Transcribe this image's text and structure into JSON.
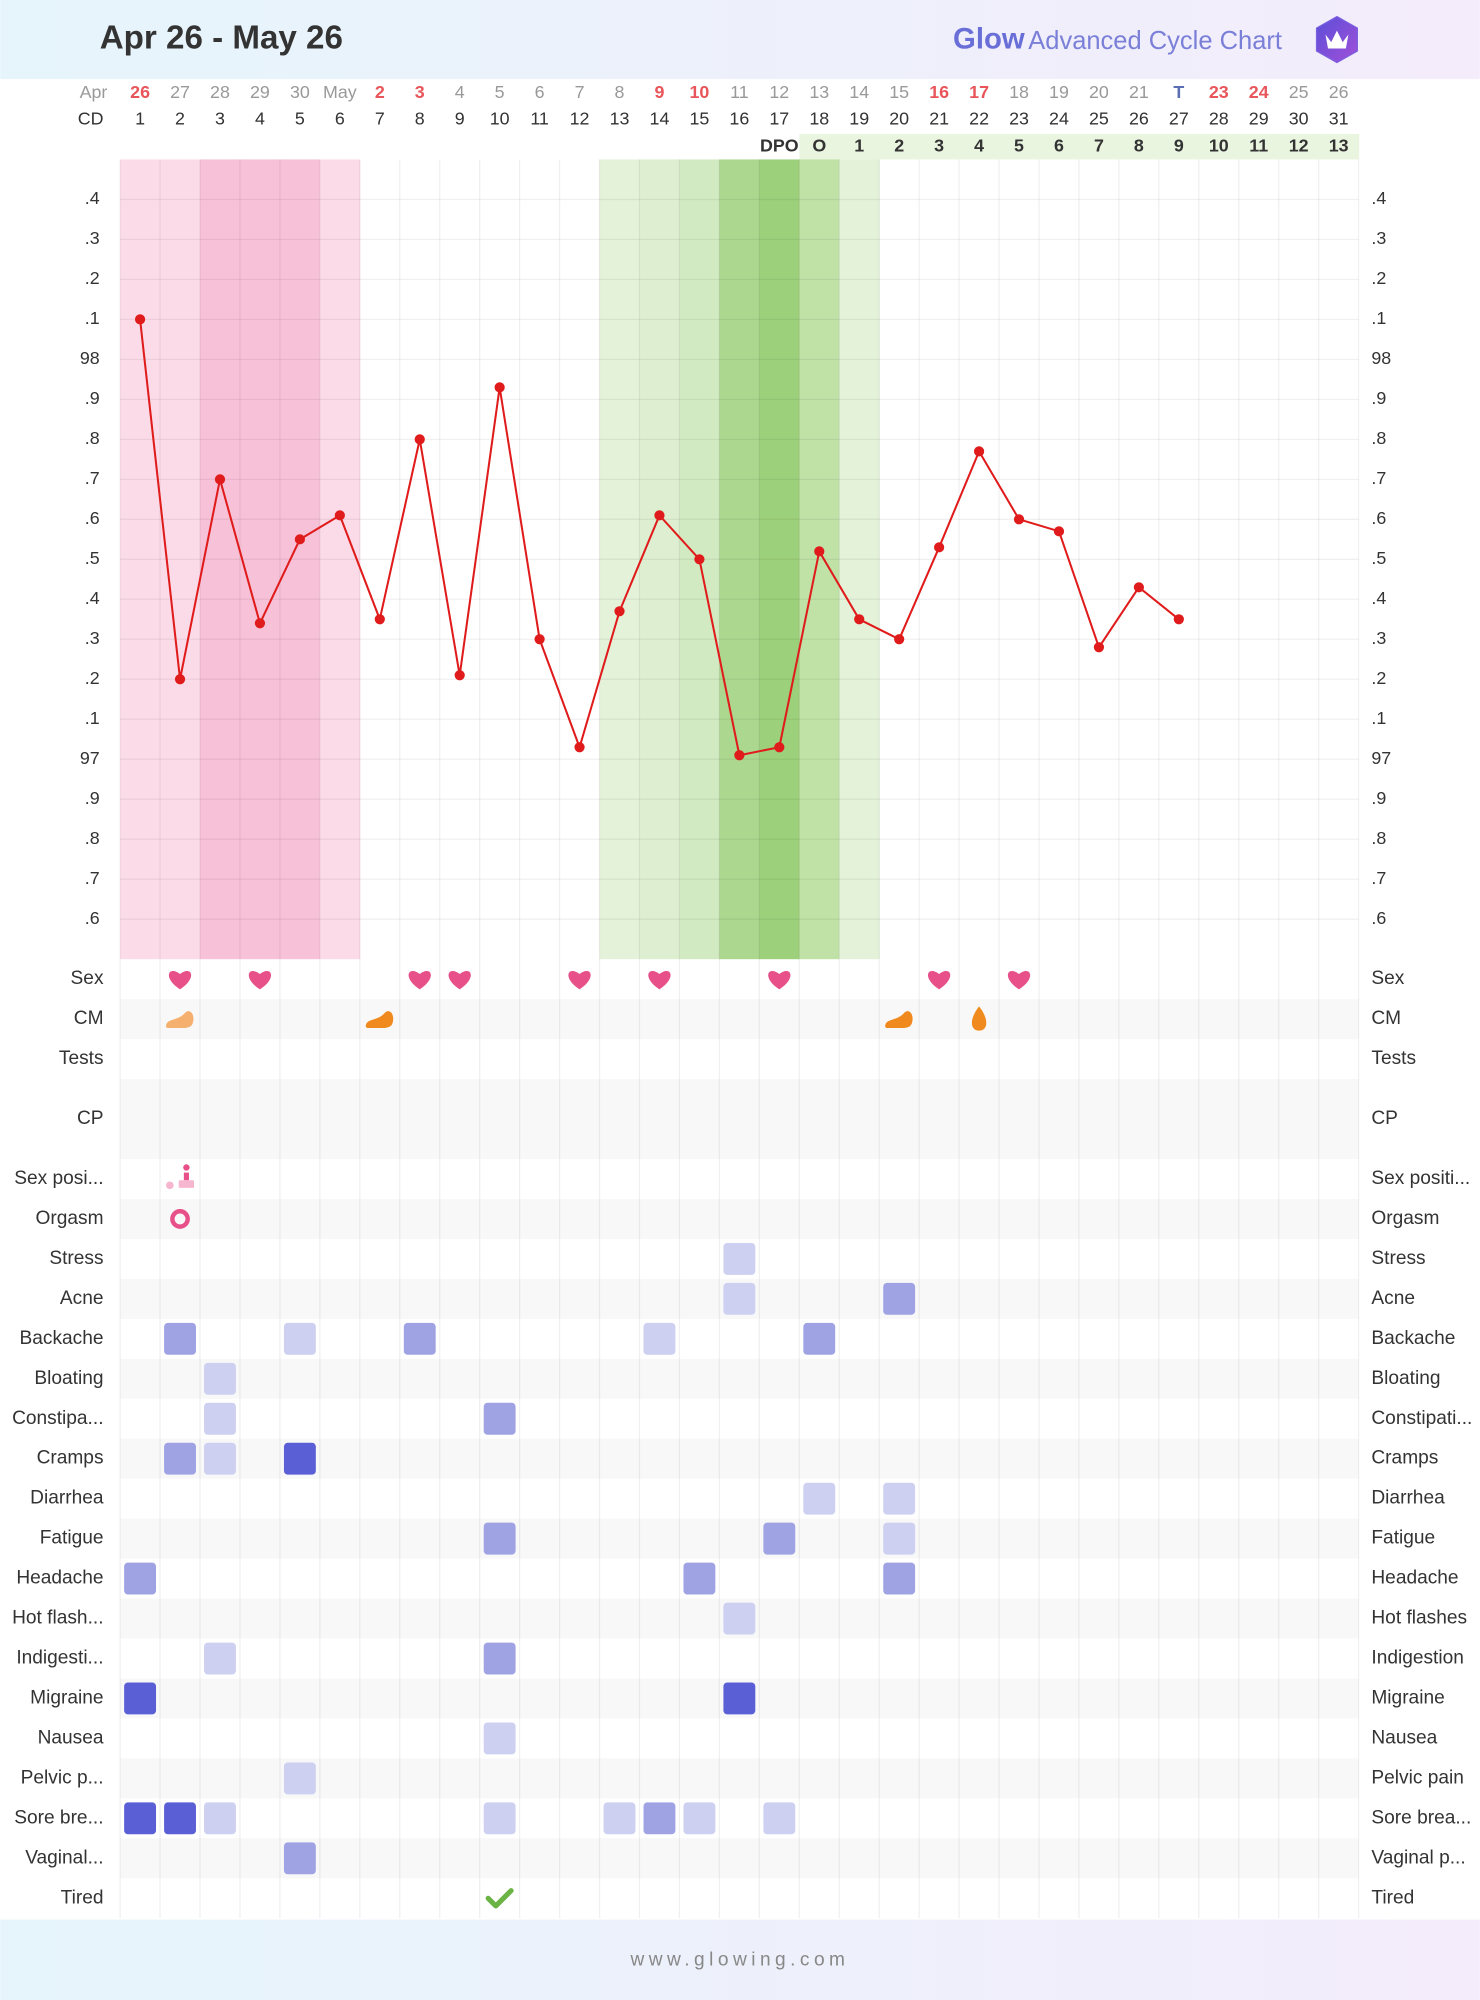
{
  "header": {
    "title": "Apr 26 - May 26",
    "brand_logo": "Glow",
    "brand": "Advanced Cycle Chart"
  },
  "footer": "www.glowing.com",
  "chart_data": {
    "type": "line",
    "category_label": "Apr",
    "categories": [
      "26",
      "27",
      "28",
      "29",
      "30",
      "May",
      "2",
      "3",
      "4",
      "5",
      "6",
      "7",
      "8",
      "9",
      "10",
      "11",
      "12",
      "13",
      "14",
      "15",
      "16",
      "17",
      "18",
      "19",
      "20",
      "21",
      "T",
      "23",
      "24",
      "25",
      "26"
    ],
    "category_colors": [
      "#e8555a",
      null,
      null,
      null,
      null,
      null,
      "#e8555a",
      "#e8555a",
      null,
      null,
      null,
      null,
      null,
      "#e8555a",
      "#e8555a",
      null,
      null,
      null,
      null,
      null,
      "#e8555a",
      "#e8555a",
      null,
      null,
      null,
      null,
      "#5b6fb3",
      "#e8555a",
      "#e8555a",
      null,
      null
    ],
    "values": [
      98.1,
      97.2,
      97.7,
      97.34,
      97.55,
      97.61,
      97.35,
      97.8,
      97.21,
      97.93,
      97.3,
      97.03,
      97.37,
      97.61,
      97.5,
      97.01,
      97.03,
      97.52,
      97.35,
      97.3,
      97.53,
      97.77,
      97.6,
      97.57,
      97.28,
      97.43,
      97.35,
      null,
      null,
      null,
      null
    ],
    "color": "#e01b1b",
    "column_colors": [
      "#fbdbe8",
      "#fbdbe8",
      "#f7c1d7",
      "#f7c1d7",
      "#f7c1d7",
      "#fbdbe8",
      null,
      null,
      null,
      null,
      null,
      null,
      "#e4f2da",
      "#ddefd0",
      "#d2eac2",
      "#acd78f",
      "#9dd07b",
      "#c0e2a7",
      "#e4f2da",
      null,
      null,
      null,
      null,
      null,
      null,
      null,
      null,
      null,
      null,
      null,
      null
    ],
    "ylim": [
      96.5,
      98.5
    ],
    "yticks": [
      {
        "value": 98.4,
        "label": ".4"
      },
      {
        "value": 98.3,
        "label": ".3"
      },
      {
        "value": 98.2,
        "label": ".2"
      },
      {
        "value": 98.1,
        "label": ".1"
      },
      98,
      {
        "value": 97.9,
        "label": ".9"
      },
      {
        "value": 97.8,
        "label": ".8"
      },
      {
        "value": 97.7,
        "label": ".7"
      },
      {
        "value": 97.6,
        "label": ".6"
      },
      {
        "value": 97.5,
        "label": ".5"
      },
      {
        "value": 97.4,
        "label": ".4"
      },
      {
        "value": 97.3,
        "label": ".3"
      },
      {
        "value": 97.2,
        "label": ".2"
      },
      {
        "value": 97.1,
        "label": ".1"
      },
      97,
      {
        "value": 96.9,
        "label": ".9"
      },
      {
        "value": 96.8,
        "label": ".8"
      },
      {
        "value": 96.7,
        "label": ".7"
      },
      {
        "value": 96.6,
        "label": ".6"
      }
    ],
    "grid": true
  },
  "cycle_days": {
    "label": "CD",
    "values": [
      1,
      2,
      3,
      4,
      5,
      6,
      7,
      8,
      9,
      10,
      11,
      12,
      13,
      14,
      15,
      16,
      17,
      18,
      19,
      20,
      21,
      22,
      23,
      24,
      25,
      26,
      27,
      28,
      29,
      30,
      31
    ]
  },
  "dpo": {
    "values": [
      null,
      null,
      null,
      null,
      null,
      null,
      null,
      null,
      null,
      null,
      null,
      null,
      null,
      null,
      null,
      null,
      "DPO",
      "O",
      1,
      2,
      3,
      4,
      5,
      6,
      7,
      8,
      9,
      10,
      11,
      12,
      13
    ],
    "color": "#eaf5e0"
  },
  "level_colors": [
    "#cdd0f0",
    "#9fa3e3",
    "#5b5fd6"
  ],
  "rows": [
    {
      "label": "Sex",
      "label_right": "Sex",
      "days": [
        2,
        4,
        8,
        9,
        12,
        14,
        17,
        21,
        23
      ]
    },
    {
      "label": "CM",
      "label_right": "CM",
      "days": [
        2,
        7,
        20,
        22
      ]
    },
    {
      "label": "Tests",
      "label_right": "Tests"
    },
    {
      "label": "CP",
      "label_right": "CP"
    },
    {
      "label": "Sex posi...",
      "label_right": "Sex positi...",
      "days": [
        2
      ]
    },
    {
      "label": "Orgasm",
      "label_right": "Orgasm",
      "days": [
        2
      ]
    },
    {
      "label": "Stress",
      "label_right": "Stress",
      "days": [
        16
      ],
      "levels": [
        1
      ]
    },
    {
      "label": "Acne",
      "label_right": "Acne",
      "days": [
        16,
        20
      ],
      "levels": [
        1,
        2
      ]
    },
    {
      "label": "Backache",
      "label_right": "Backache",
      "days": [
        2,
        5,
        8,
        14,
        18
      ],
      "levels": [
        2,
        1,
        2,
        1,
        2
      ]
    },
    {
      "label": "Bloating",
      "label_right": "Bloating",
      "days": [
        3
      ],
      "levels": [
        1
      ]
    },
    {
      "label": "Constipa...",
      "label_right": "Constipati...",
      "days": [
        3,
        10
      ],
      "levels": [
        1,
        2
      ]
    },
    {
      "label": "Cramps",
      "label_right": "Cramps",
      "days": [
        2,
        3,
        5
      ],
      "levels": [
        2,
        1,
        3
      ]
    },
    {
      "label": "Diarrhea",
      "label_right": "Diarrhea",
      "days": [
        18,
        20
      ],
      "levels": [
        1,
        1
      ]
    },
    {
      "label": "Fatigue",
      "label_right": "Fatigue",
      "days": [
        10,
        17,
        20
      ],
      "levels": [
        2,
        2,
        1
      ]
    },
    {
      "label": "Headache",
      "label_right": "Headache",
      "days": [
        1,
        15,
        20
      ],
      "levels": [
        2,
        2,
        2
      ]
    },
    {
      "label": "Hot flash...",
      "label_right": "Hot flashes",
      "days": [
        16
      ],
      "levels": [
        1
      ]
    },
    {
      "label": "Indigesti...",
      "label_right": "Indigestion",
      "days": [
        3,
        10
      ],
      "levels": [
        1,
        2
      ]
    },
    {
      "label": "Migraine",
      "label_right": "Migraine",
      "days": [
        1,
        16
      ],
      "levels": [
        3,
        3
      ]
    },
    {
      "label": "Nausea",
      "label_right": "Nausea",
      "days": [
        10
      ],
      "levels": [
        1
      ]
    },
    {
      "label": "Pelvic p...",
      "label_right": "Pelvic pain",
      "days": [
        5
      ],
      "levels": [
        1
      ]
    },
    {
      "label": "Sore bre...",
      "label_right": "Sore brea...",
      "days": [
        1,
        2,
        3,
        10,
        13,
        14,
        15,
        17
      ],
      "levels": [
        3,
        3,
        1,
        1,
        1,
        2,
        1,
        1
      ]
    },
    {
      "label": "Vaginal...",
      "label_right": "Vaginal p...",
      "days": [
        5
      ],
      "levels": [
        2
      ]
    },
    {
      "label": "Tired",
      "label_right": "Tired",
      "days": [
        10
      ]
    }
  ]
}
